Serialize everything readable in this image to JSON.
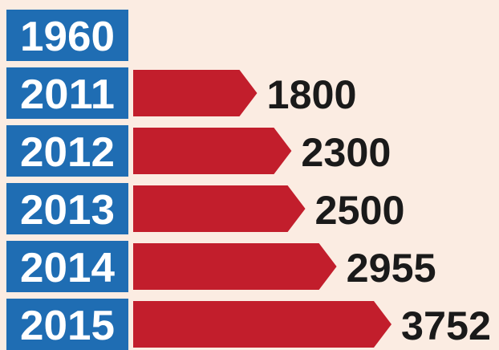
{
  "chart_data": {
    "type": "bar",
    "orientation": "horizontal",
    "categories": [
      "1960",
      "2011",
      "2012",
      "2013",
      "2014",
      "2015"
    ],
    "values": [
      null,
      1800,
      2300,
      2500,
      2955,
      3752
    ],
    "color": "#c21e2c",
    "category_color": "#1f6db3"
  }
}
